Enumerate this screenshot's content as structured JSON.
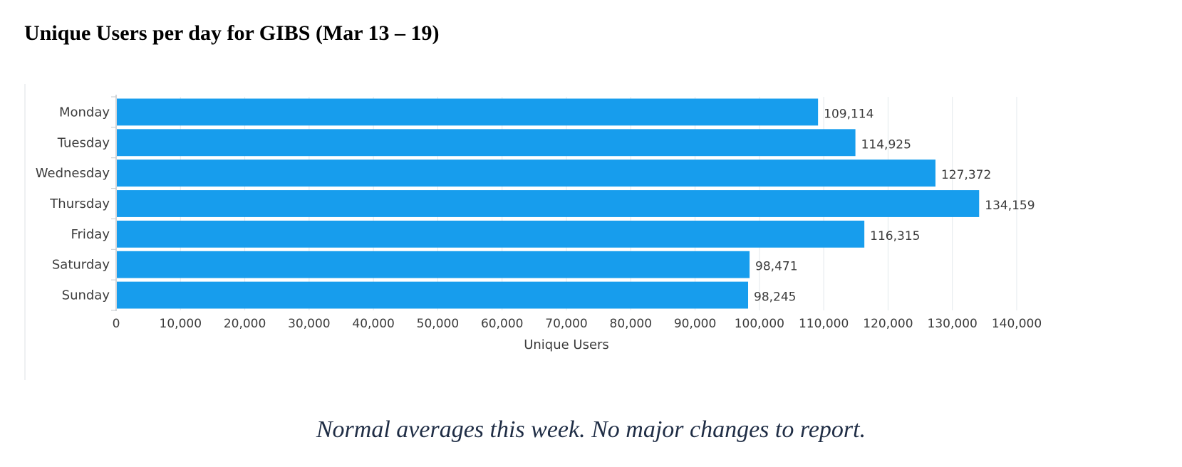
{
  "title": "Unique Users per day for GIBS (Mar 13 – 19)",
  "caption": "Normal averages this week.  No major changes to report.",
  "colors": {
    "bar": "#179ded",
    "grid": "#e3e8ec",
    "text": "#3c3c3c"
  },
  "chart_data": {
    "type": "bar",
    "orientation": "horizontal",
    "categories": [
      "Monday",
      "Tuesday",
      "Wednesday",
      "Thursday",
      "Friday",
      "Saturday",
      "Sunday"
    ],
    "values": [
      109114,
      114925,
      127372,
      134159,
      116315,
      98471,
      98245
    ],
    "value_labels": [
      "109,114",
      "114,925",
      "127,372",
      "134,159",
      "116,315",
      "98,471",
      "98,245"
    ],
    "xlabel": "Unique Users",
    "ylabel": "",
    "xlim": [
      0,
      140000
    ],
    "xticks": [
      0,
      10000,
      20000,
      30000,
      40000,
      50000,
      60000,
      70000,
      80000,
      90000,
      100000,
      110000,
      120000,
      130000,
      140000
    ],
    "xtick_labels": [
      "0",
      "10,000",
      "20,000",
      "30,000",
      "40,000",
      "50,000",
      "60,000",
      "70,000",
      "80,000",
      "90,000",
      "100,000",
      "110,000",
      "120,000",
      "130,000",
      "140,000"
    ],
    "grid": true,
    "legend": false
  }
}
